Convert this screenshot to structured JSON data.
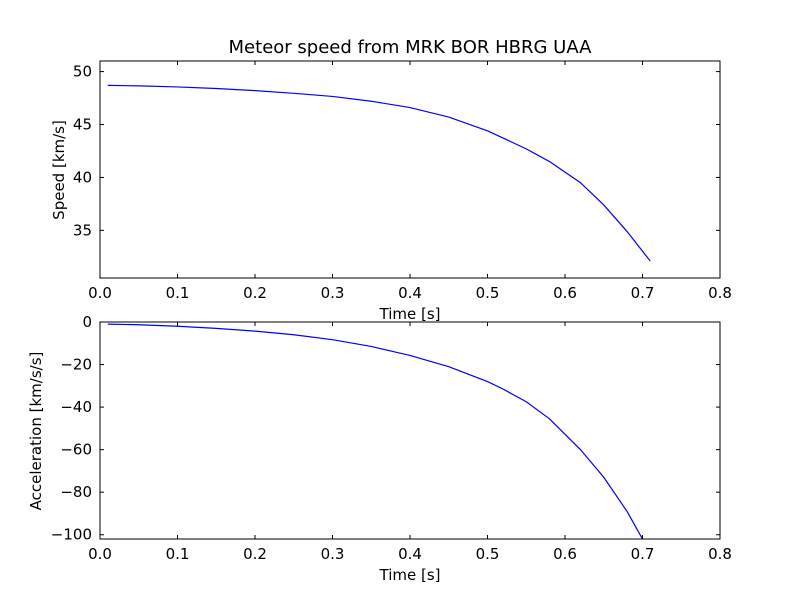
{
  "chart_data": [
    {
      "type": "line",
      "title": "Meteor speed from  MRK BOR HBRG UAA",
      "xlabel": "Time [s]",
      "ylabel": "Speed [km/s]",
      "xlim": [
        0.0,
        0.8
      ],
      "ylim": [
        30.5,
        51.0
      ],
      "xticks": [
        0.0,
        0.1,
        0.2,
        0.3,
        0.4,
        0.5,
        0.6,
        0.7,
        0.8
      ],
      "xtick_labels": [
        "0.0",
        "0.1",
        "0.2",
        "0.3",
        "0.4",
        "0.5",
        "0.6",
        "0.7",
        "0.8"
      ],
      "yticks": [
        35,
        40,
        45,
        50
      ],
      "ytick_labels": [
        "35",
        "40",
        "45",
        "50"
      ],
      "grid": false,
      "line_color": "#0000ff",
      "series": [
        {
          "x": [
            0.01,
            0.05,
            0.1,
            0.15,
            0.2,
            0.25,
            0.3,
            0.35,
            0.4,
            0.45,
            0.5,
            0.55,
            0.58,
            0.62,
            0.65,
            0.68,
            0.71
          ],
          "values": [
            48.7,
            48.65,
            48.55,
            48.4,
            48.2,
            47.95,
            47.65,
            47.2,
            46.6,
            45.7,
            44.4,
            42.7,
            41.5,
            39.5,
            37.4,
            34.9,
            32.1
          ]
        }
      ]
    },
    {
      "type": "line",
      "title": "",
      "xlabel": "Time [s]",
      "ylabel": "Acceleration [km/s/s]",
      "xlim": [
        0.0,
        0.8
      ],
      "ylim": [
        -102.0,
        0.0
      ],
      "xticks": [
        0.0,
        0.1,
        0.2,
        0.3,
        0.4,
        0.5,
        0.6,
        0.7,
        0.8
      ],
      "xtick_labels": [
        "0.0",
        "0.1",
        "0.2",
        "0.3",
        "0.4",
        "0.5",
        "0.6",
        "0.7",
        "0.8"
      ],
      "yticks": [
        0,
        -20,
        -40,
        -60,
        -80,
        -100
      ],
      "ytick_labels": [
        "0",
        "−20",
        "−40",
        "−60",
        "−80",
        "−100"
      ],
      "grid": false,
      "line_color": "#0000ff",
      "series": [
        {
          "x": [
            0.01,
            0.05,
            0.1,
            0.15,
            0.2,
            0.25,
            0.3,
            0.35,
            0.4,
            0.45,
            0.5,
            0.52,
            0.55,
            0.58,
            0.62,
            0.65,
            0.68,
            0.7
          ],
          "values": [
            -1.0,
            -1.3,
            -2.0,
            -3.0,
            -4.3,
            -6.0,
            -8.3,
            -11.5,
            -15.7,
            -21.0,
            -28.0,
            -31.5,
            -37.5,
            -45.5,
            -60.0,
            -73.0,
            -89.0,
            -102.0
          ]
        }
      ]
    }
  ]
}
